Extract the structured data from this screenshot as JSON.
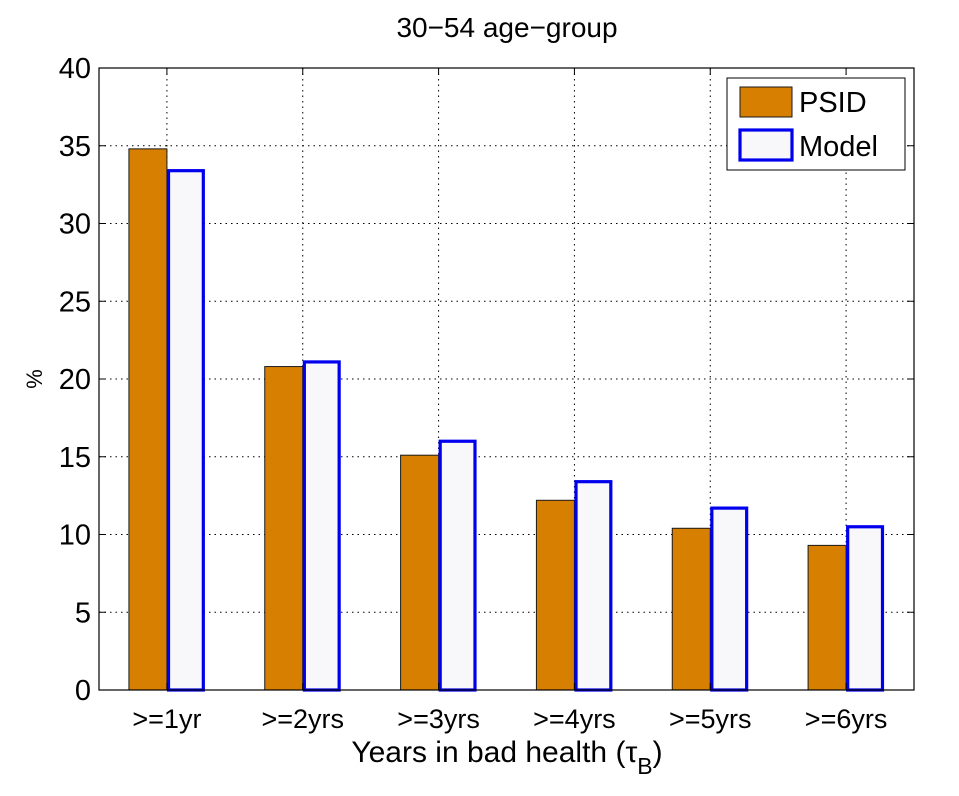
{
  "chart_data": {
    "type": "bar",
    "title": "30−54 age−group",
    "xlabel": "Years in bad health (",
    "xlabel_symbol": "τ",
    "xlabel_subscript": "B",
    "xlabel_close": ")",
    "ylabel": "%",
    "ylim": [
      0,
      40
    ],
    "yticks": [
      0,
      5,
      10,
      15,
      20,
      25,
      30,
      35,
      40
    ],
    "grid": true,
    "legend_position": "top-right",
    "categories": [
      ">=1yr",
      ">=2yrs",
      ">=3yrs",
      ">=4yrs",
      ">=5yrs",
      ">=6yrs"
    ],
    "series": [
      {
        "name": "PSID",
        "values": [
          34.8,
          20.8,
          15.1,
          12.2,
          10.4,
          9.3
        ],
        "fill": "#d77f00",
        "stroke": "#1a1a1a"
      },
      {
        "name": "Model",
        "values": [
          33.5,
          21.2,
          16.1,
          13.5,
          11.8,
          10.6
        ],
        "fill": "#f8f8fa",
        "stroke": "#0000ee"
      }
    ]
  }
}
